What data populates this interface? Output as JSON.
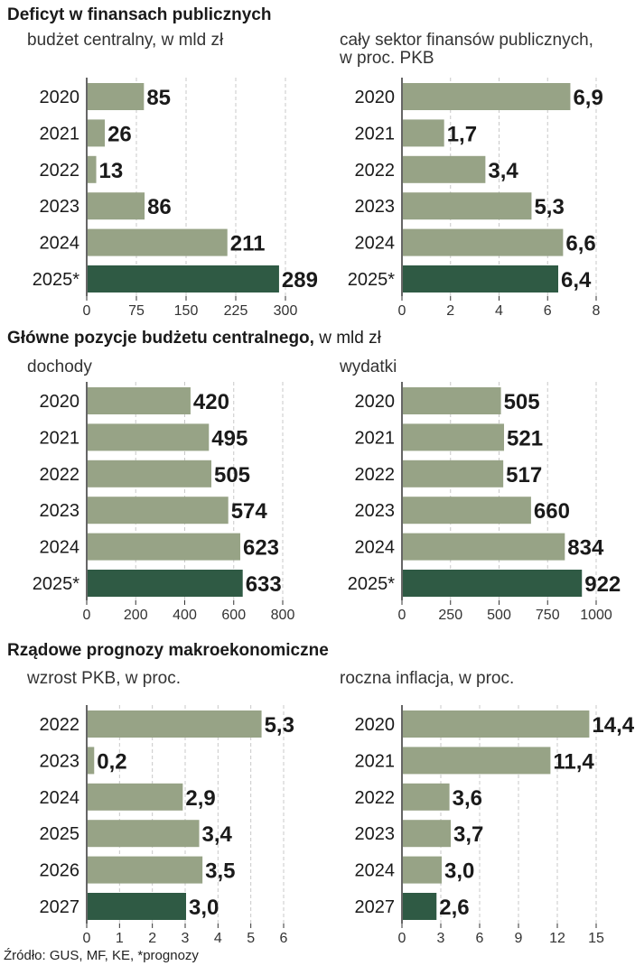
{
  "colors": {
    "bar": "#97a386",
    "highlight": "#2f5a44",
    "grid": "#c8c8c8",
    "axis": "#333333",
    "text": "#1a1a1a"
  },
  "sections": {
    "s1": {
      "title_bold": "Deficyt w finansach publicznych",
      "title_rest": ""
    },
    "s2": {
      "title_bold": "Główne pozycje budżetu centralnego,",
      "title_rest": " w mld zł"
    },
    "s3": {
      "title_bold": "Rządowe prognozy makroekonomiczne",
      "title_rest": ""
    }
  },
  "source": "Źródło: GUS, MF, KE, *prognozy",
  "chart_data": [
    {
      "type": "bar",
      "subtitle": [
        "budżet centralny, w mld zł"
      ],
      "categories": [
        "2020",
        "2021",
        "2022",
        "2023",
        "2024",
        "2025*"
      ],
      "values": [
        85,
        26,
        13,
        86,
        211,
        289
      ],
      "labels": [
        "85",
        "26",
        "13",
        "86",
        "211",
        "289"
      ],
      "ticks": [
        0,
        75,
        150,
        225,
        300
      ],
      "tick_labels": [
        "0",
        "75",
        "150",
        "225",
        "300"
      ],
      "xlim": [
        0,
        300
      ],
      "highlight_index": 5
    },
    {
      "type": "bar",
      "subtitle": [
        "cały sektor finansów publicznych,",
        "w proc. PKB"
      ],
      "categories": [
        "2020",
        "2021",
        "2022",
        "2023",
        "2024",
        "2025*"
      ],
      "values": [
        6.9,
        1.7,
        3.4,
        5.3,
        6.6,
        6.4
      ],
      "labels": [
        "6,9",
        "1,7",
        "3,4",
        "5,3",
        "6,6",
        "6,4"
      ],
      "ticks": [
        0,
        2,
        4,
        6,
        8
      ],
      "tick_labels": [
        "0",
        "2",
        "4",
        "6",
        "8"
      ],
      "xlim": [
        0,
        8
      ],
      "highlight_index": 5
    },
    {
      "type": "bar",
      "subtitle": [
        "dochody"
      ],
      "categories": [
        "2020",
        "2021",
        "2022",
        "2023",
        "2024",
        "2025*"
      ],
      "values": [
        420,
        495,
        505,
        574,
        623,
        633
      ],
      "labels": [
        "420",
        "495",
        "505",
        "574",
        "623",
        "633"
      ],
      "ticks": [
        0,
        200,
        400,
        600,
        800
      ],
      "tick_labels": [
        "0",
        "200",
        "400",
        "600",
        "800"
      ],
      "xlim": [
        0,
        800
      ],
      "highlight_index": 5
    },
    {
      "type": "bar",
      "subtitle": [
        "wydatki"
      ],
      "categories": [
        "2020",
        "2021",
        "2022",
        "2023",
        "2024",
        "2025*"
      ],
      "values": [
        505,
        521,
        517,
        660,
        834,
        922
      ],
      "labels": [
        "505",
        "521",
        "517",
        "660",
        "834",
        "922"
      ],
      "ticks": [
        0,
        250,
        500,
        750,
        1000
      ],
      "tick_labels": [
        "0",
        "250",
        "500",
        "750",
        "1000"
      ],
      "xlim": [
        0,
        1000
      ],
      "highlight_index": 5
    },
    {
      "type": "bar",
      "subtitle": [
        "wzrost PKB, w proc."
      ],
      "categories": [
        "2022",
        "2023",
        "2024",
        "2025",
        "2026",
        "2027"
      ],
      "values": [
        5.3,
        0.2,
        2.9,
        3.4,
        3.5,
        3.0
      ],
      "labels": [
        "5,3",
        "0,2",
        "2,9",
        "3,4",
        "3,5",
        "3,0"
      ],
      "ticks": [
        0,
        1,
        2,
        3,
        4,
        5,
        6
      ],
      "tick_labels": [
        "0",
        "1",
        "2",
        "3",
        "4",
        "5",
        "6"
      ],
      "xlim": [
        0,
        6
      ],
      "highlight_index": 5
    },
    {
      "type": "bar",
      "subtitle": [
        "roczna inflacja, w proc."
      ],
      "categories": [
        "2020",
        "2021",
        "2022",
        "2023",
        "2024",
        "2027"
      ],
      "values": [
        14.4,
        11.4,
        3.6,
        3.7,
        3.0,
        2.6
      ],
      "labels": [
        "14,4",
        "11,4",
        "3,6",
        "3,7",
        "3,0",
        "2,6"
      ],
      "ticks": [
        0,
        3,
        6,
        9,
        12,
        15
      ],
      "tick_labels": [
        "0",
        "3",
        "6",
        "9",
        "12",
        "15"
      ],
      "xlim": [
        0,
        15
      ],
      "highlight_index": 5
    }
  ]
}
